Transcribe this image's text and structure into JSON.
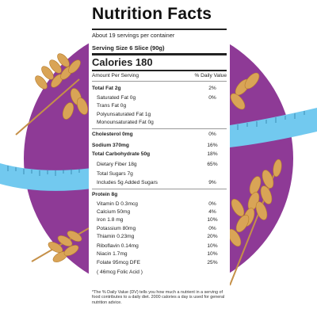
{
  "label": {
    "title": "Nutrition Facts",
    "servings": "About 19 servings per container",
    "serving_size": "Serving Size 6 Slice (90g)",
    "calories": "Calories 180",
    "amount_per_serving": "Amount Per Serving",
    "dv_header": "% Daily Value",
    "rows": [
      {
        "name": "Total Fat 2g",
        "dv": "2%",
        "bold": true
      },
      {
        "name": "Saturated Fat 0g",
        "dv": "0%",
        "bold": false,
        "indent": true
      },
      {
        "name": "Trans Fat 0g",
        "dv": "",
        "bold": false,
        "indent": true
      },
      {
        "name": "Polyunsaturated Fat 1g",
        "dv": "",
        "bold": false,
        "indent": true
      },
      {
        "name": "Monounsaturated Fat 0g",
        "dv": "",
        "bold": false,
        "indent": true
      },
      {
        "name": "Cholesterol 0mg",
        "dv": "0%",
        "bold": true
      },
      {
        "name": "Sodium 370mg",
        "dv": "16%",
        "bold": true
      },
      {
        "name": "Total Carbohydrate 50g",
        "dv": "18%",
        "bold": true
      },
      {
        "name": "Dietary Fiber 18g",
        "dv": "65%",
        "bold": false,
        "indent": true
      },
      {
        "name": "Total Sugars 7g",
        "dv": "",
        "bold": false,
        "indent": true
      },
      {
        "name": "Includes 5g Added Sugars",
        "dv": "9%",
        "bold": false,
        "indent": true
      },
      {
        "name": "Protein 8g",
        "dv": "",
        "bold": true
      },
      {
        "name": "Vitamin D 0.3mcg",
        "dv": "0%",
        "bold": false,
        "indent": true
      },
      {
        "name": "Calcium 50mg",
        "dv": "4%",
        "bold": false,
        "indent": true
      },
      {
        "name": "Iron 1.8 mg",
        "dv": "10%",
        "bold": false,
        "indent": true
      },
      {
        "name": "Potassium 80mg",
        "dv": "0%",
        "bold": false,
        "indent": true
      },
      {
        "name": "Thiamin 0.23mg",
        "dv": "20%",
        "bold": false,
        "indent": true
      },
      {
        "name": "Riboflavin 0.14mg",
        "dv": "10%",
        "bold": false,
        "indent": true
      },
      {
        "name": "Niacin 1.7mg",
        "dv": "10%",
        "bold": false,
        "indent": true
      },
      {
        "name": "Folate 95mcg DFE",
        "dv": "25%",
        "bold": false,
        "indent": true
      },
      {
        "name": "( 46mcg Folic Acid )",
        "dv": "",
        "bold": false,
        "indent": true
      }
    ],
    "footnote": "*The % Daily Value (DV) tells you how much a nutrient in a serving of food contributes to a daily diet. 2000 calories a day is used for general nutrition advice."
  },
  "colors": {
    "circle": "#8e3a96",
    "tape": "#6fc8f0",
    "wheat": "#d9a456"
  }
}
